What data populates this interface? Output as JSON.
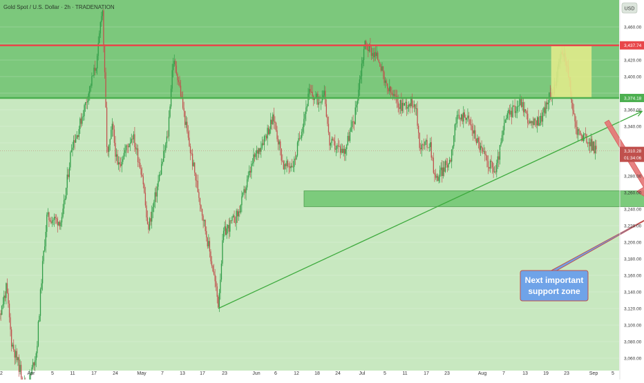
{
  "header": {
    "title": "Gold Spot / U.S. Dollar · 2h · TRADENATION"
  },
  "currency_badge": "USD",
  "colors": {
    "top_zone": "#7cc87c",
    "lower_zone": "#c8e8c0",
    "up_candle": "#2e9c46",
    "down_candle": "#c0504d",
    "resistance_line": "#e8474a",
    "support_line": "#4caf50",
    "trendline": "#3daa3d",
    "highlight_box": "#e6ec8c",
    "support_zone": "#7ccb7c",
    "arrow": "#e57373",
    "callout": "#6fa3e8"
  },
  "annotation": {
    "line1": "Next important",
    "line2": "support zone"
  },
  "chart_data": {
    "type": "candlestick",
    "title": "Gold Spot / U.S. Dollar · 2h · TRADENATION",
    "ylim": [
      3045,
      3480
    ],
    "x_labels": [
      "2",
      "Apr",
      "5",
      "11",
      "17",
      "24",
      "May",
      "7",
      "13",
      "17",
      "23",
      "Jun",
      "6",
      "12",
      "18",
      "24",
      "Jul",
      "5",
      "11",
      "17",
      "23",
      "Aug",
      "7",
      "13",
      "19",
      "23",
      "Sep",
      "5"
    ],
    "y_ticks": [
      3060,
      3080,
      3100,
      3120,
      3140,
      3160,
      3180,
      3200,
      3220,
      3240,
      3260,
      3280,
      3320,
      3340,
      3360,
      3380,
      3400,
      3420,
      3440,
      3460
    ],
    "y_tick_labels": [
      "3,060.00",
      "3,080.00",
      "3,100.00",
      "3,120.00",
      "3,140.00",
      "3,160.00",
      "3,180.00",
      "3,200.00",
      "3,220.00",
      "3,240.00",
      "3,260.00",
      "3,280.00",
      "3,320.00",
      "3,340.00",
      "3,360.00",
      "3,380.00",
      "3,400.00",
      "3,420.00",
      "3,440.00",
      "3,460.00"
    ],
    "levels": [
      {
        "label": "3,437.74",
        "value": 3437.74,
        "role": "resistance"
      },
      {
        "label": "3,374.18",
        "value": 3374.18,
        "role": "support"
      },
      {
        "label": "3,310.28",
        "value": 3310.28,
        "role": "last",
        "countdown": "01:34:06"
      }
    ],
    "price_path": [
      {
        "date": "Mar 28",
        "price": 3058
      },
      {
        "date": "Apr 2",
        "price": 3120
      },
      {
        "date": "Apr 3",
        "price": 3145
      },
      {
        "date": "Apr 4",
        "price": 3080
      },
      {
        "date": "Apr 7",
        "price": 3020
      },
      {
        "date": "Apr 9",
        "price": 3070
      },
      {
        "date": "Apr 10",
        "price": 3160
      },
      {
        "date": "Apr 11",
        "price": 3230
      },
      {
        "date": "Apr 14",
        "price": 3225
      },
      {
        "date": "Apr 16",
        "price": 3320
      },
      {
        "date": "Apr 17",
        "price": 3330
      },
      {
        "date": "Apr 21",
        "price": 3420
      },
      {
        "date": "Apr 22",
        "price": 3490
      },
      {
        "date": "Apr 23",
        "price": 3300
      },
      {
        "date": "Apr 24",
        "price": 3340
      },
      {
        "date": "Apr 25",
        "price": 3290
      },
      {
        "date": "Apr 28",
        "price": 3330
      },
      {
        "date": "Apr 30",
        "price": 3280
      },
      {
        "date": "May 1",
        "price": 3215
      },
      {
        "date": "May 2",
        "price": 3240
      },
      {
        "date": "May 5",
        "price": 3330
      },
      {
        "date": "May 6",
        "price": 3420
      },
      {
        "date": "May 7",
        "price": 3400
      },
      {
        "date": "May 9",
        "price": 3325
      },
      {
        "date": "May 12",
        "price": 3230
      },
      {
        "date": "May 14",
        "price": 3165
      },
      {
        "date": "May 15",
        "price": 3125
      },
      {
        "date": "May 16",
        "price": 3210
      },
      {
        "date": "May 19",
        "price": 3235
      },
      {
        "date": "May 22",
        "price": 3300
      },
      {
        "date": "May 26",
        "price": 3350
      },
      {
        "date": "May 28",
        "price": 3290
      },
      {
        "date": "May 30",
        "price": 3295
      },
      {
        "date": "Jun 2",
        "price": 3380
      },
      {
        "date": "Jun 4",
        "price": 3370
      },
      {
        "date": "Jun 5",
        "price": 3385
      },
      {
        "date": "Jun 6",
        "price": 3320
      },
      {
        "date": "Jun 9",
        "price": 3310
      },
      {
        "date": "Jun 11",
        "price": 3350
      },
      {
        "date": "Jun 13",
        "price": 3440
      },
      {
        "date": "Jun 16",
        "price": 3420
      },
      {
        "date": "Jun 17",
        "price": 3390
      },
      {
        "date": "Jun 20",
        "price": 3365
      },
      {
        "date": "Jun 23",
        "price": 3370
      },
      {
        "date": "Jun 24",
        "price": 3315
      },
      {
        "date": "Jun 26",
        "price": 3320
      },
      {
        "date": "Jun 27",
        "price": 3275
      },
      {
        "date": "Jun 30",
        "price": 3300
      },
      {
        "date": "Jul 1",
        "price": 3345
      },
      {
        "date": "Jul 3",
        "price": 3355
      },
      {
        "date": "Jul 7",
        "price": 3300
      },
      {
        "date": "Jul 9",
        "price": 3285
      },
      {
        "date": "Jul 11",
        "price": 3350
      },
      {
        "date": "Jul 14",
        "price": 3370
      },
      {
        "date": "Jul 16",
        "price": 3340
      },
      {
        "date": "Jul 18",
        "price": 3350
      },
      {
        "date": "Jul 21",
        "price": 3395
      },
      {
        "date": "Jul 22",
        "price": 3430
      },
      {
        "date": "Jul 23",
        "price": 3420
      },
      {
        "date": "Jul 24",
        "price": 3370
      },
      {
        "date": "Jul 25",
        "price": 3335
      },
      {
        "date": "Jul 28",
        "price": 3318
      },
      {
        "date": "Jul 29",
        "price": 3310
      }
    ],
    "drawings": {
      "trendline": {
        "from": {
          "date": "May 15",
          "price": 3120
        },
        "to": {
          "date": "Aug 7",
          "price": 3358
        }
      },
      "highlight_box": {
        "from_date": "Jul 20",
        "to_date": "Jul 28",
        "price_range": [
          3375,
          3438
        ]
      },
      "support_zone": {
        "from_date": "Jun 1",
        "to_date": "Aug 29",
        "price_range": [
          3243,
          3262
        ]
      },
      "arrow": {
        "from": {
          "date": "Jul 31",
          "price": 3346
        },
        "to": {
          "date": "Aug 10",
          "price": 3245
        }
      },
      "callout_pointer": {
        "date": "Aug 13",
        "price": 3245
      }
    }
  }
}
